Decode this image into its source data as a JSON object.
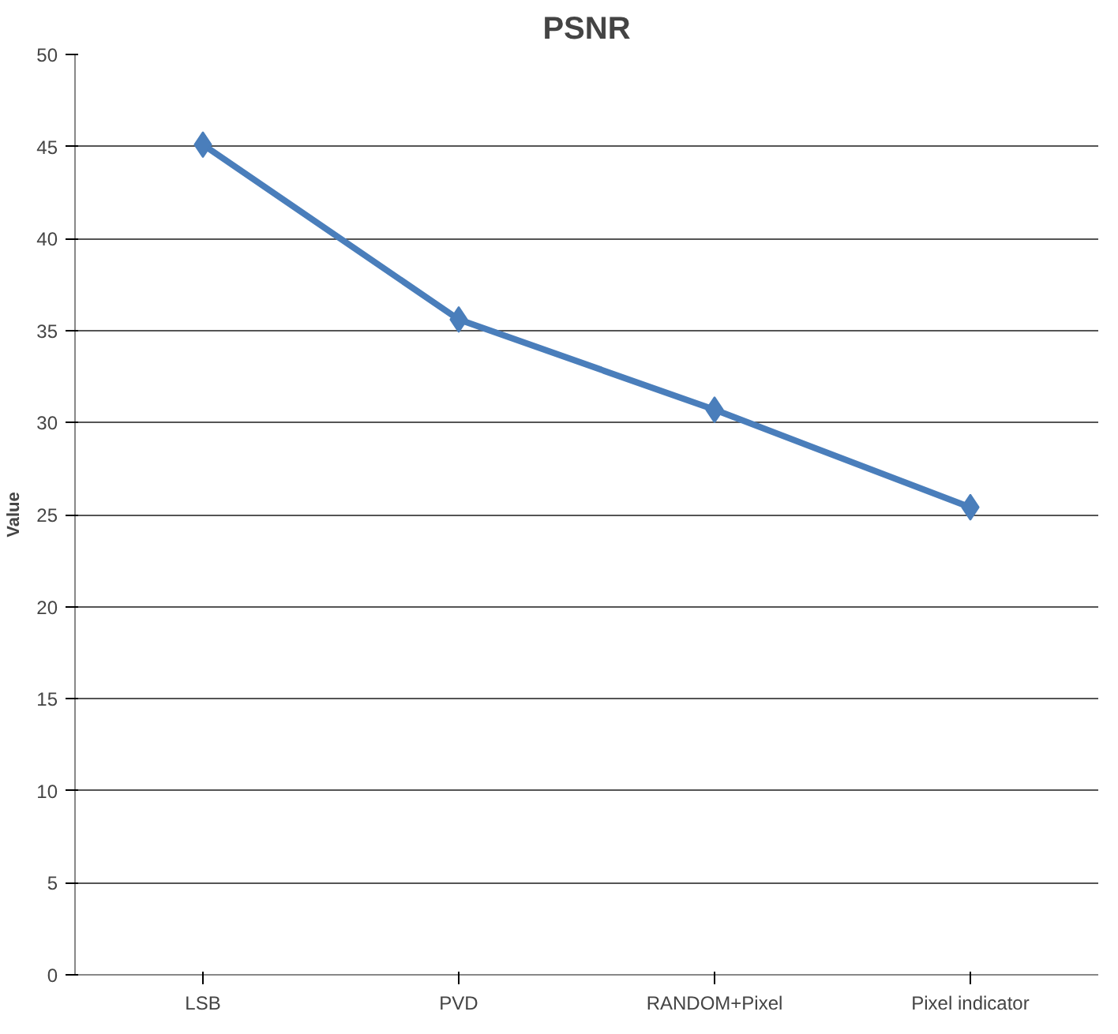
{
  "chart_data": {
    "type": "line",
    "title": "PSNR",
    "ylabel": "Value",
    "categories": [
      "LSB",
      "PVD",
      "RANDOM+Pixel",
      "Pixel indicator"
    ],
    "series": [
      {
        "color": "#4a7ebb",
        "values": [
          45.1,
          35.6,
          30.7,
          25.4
        ]
      }
    ],
    "ylim": [
      0,
      50
    ],
    "yticks": [
      0,
      5,
      10,
      15,
      20,
      25,
      30,
      35,
      40,
      45,
      50
    ],
    "grid": "y",
    "marker": "diamond"
  }
}
